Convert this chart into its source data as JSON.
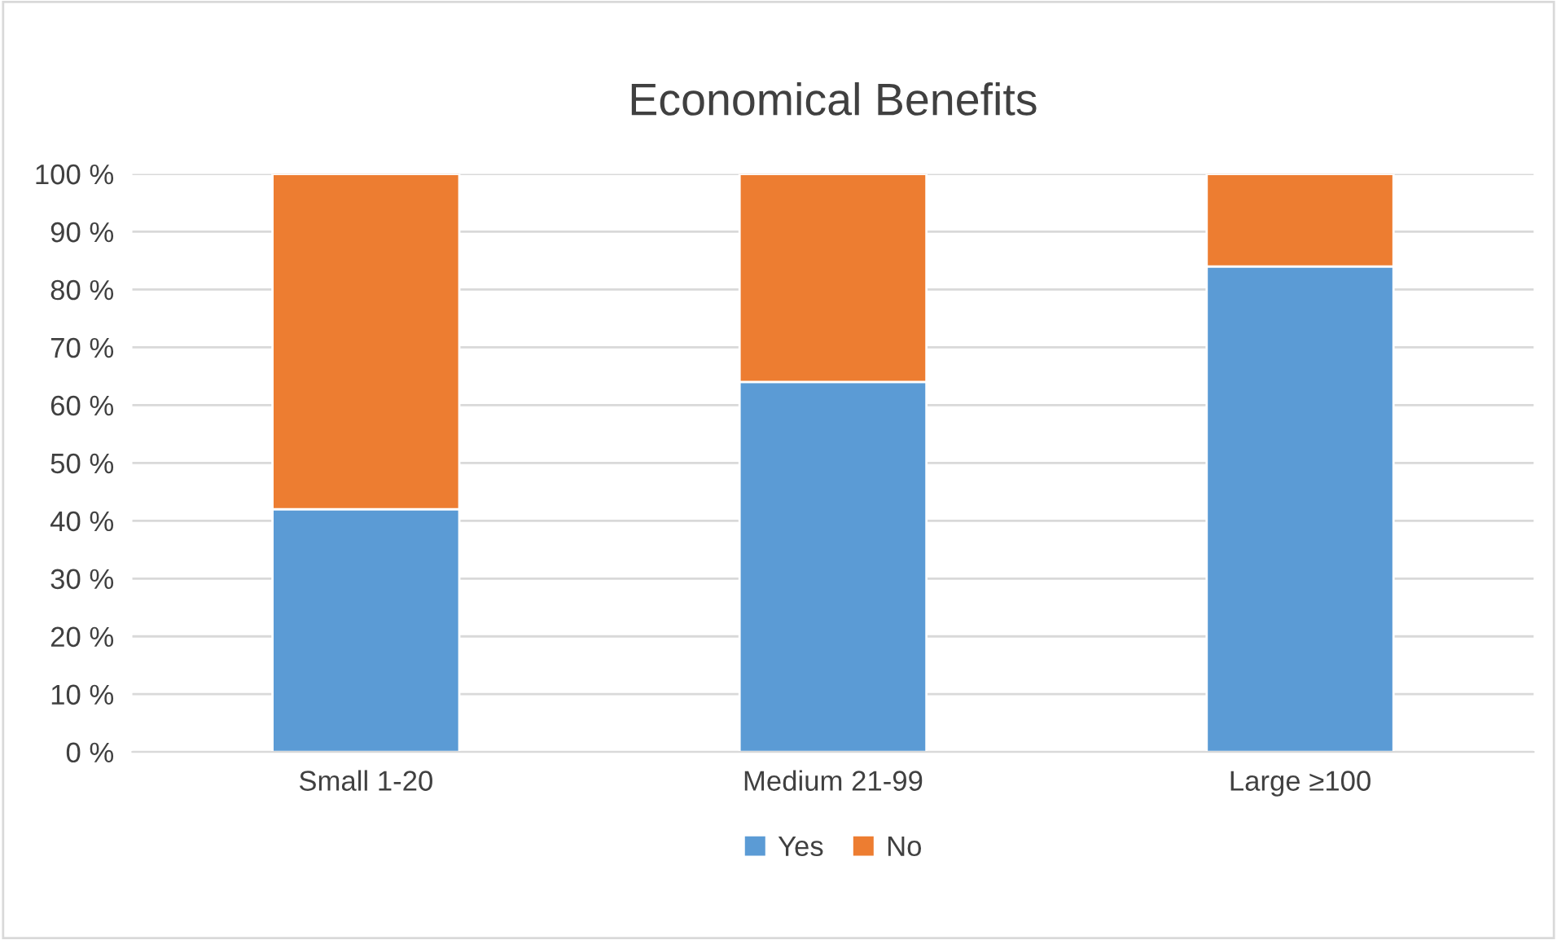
{
  "chart_data": {
    "type": "bar",
    "title": "Economical Benefits",
    "stacked": true,
    "categories": [
      "Small 1-20",
      "Medium 21-99",
      "Large ≥100"
    ],
    "series": [
      {
        "name": "Yes",
        "color": "#5b9bd5",
        "values": [
          42,
          64,
          84
        ]
      },
      {
        "name": "No",
        "color": "#ed7d31",
        "values": [
          58,
          36,
          16
        ]
      }
    ],
    "ylim": [
      0,
      100
    ],
    "yticks": [
      {
        "value": 0,
        "label": "0 %"
      },
      {
        "value": 10,
        "label": "10 %"
      },
      {
        "value": 20,
        "label": "20 %"
      },
      {
        "value": 30,
        "label": "30 %"
      },
      {
        "value": 40,
        "label": "40 %"
      },
      {
        "value": 50,
        "label": "50 %"
      },
      {
        "value": 60,
        "label": "60 %"
      },
      {
        "value": 70,
        "label": "70 %"
      },
      {
        "value": 80,
        "label": "80 %"
      },
      {
        "value": 90,
        "label": "90 %"
      },
      {
        "value": 100,
        "label": "100 %"
      }
    ],
    "grid": "y",
    "legend": "bottom"
  }
}
